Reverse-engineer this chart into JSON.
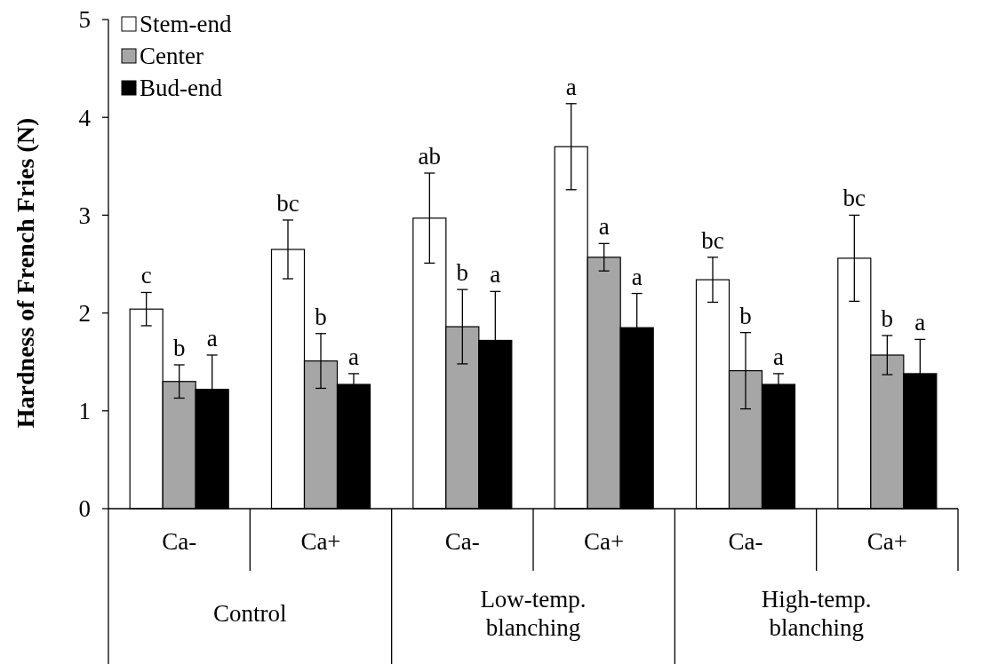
{
  "chart_data": {
    "type": "bar",
    "ylabel": "Hardness of French Fries (N)",
    "categories": [
      "Ca-",
      "Ca+",
      "Ca-",
      "Ca+",
      "Ca-",
      "Ca+"
    ],
    "series": [
      {
        "name": "Stem-end",
        "color": "#ffffff",
        "values": [
          2.04,
          2.65,
          2.97,
          3.7,
          2.34,
          2.56
        ],
        "errors": [
          0.17,
          0.3,
          0.46,
          0.44,
          0.23,
          0.44
        ],
        "value_labels": [
          "c",
          "bc",
          "ab",
          "a",
          "bc",
          "bc"
        ]
      },
      {
        "name": "Center",
        "color": "#a6a6a6",
        "values": [
          1.3,
          1.51,
          1.86,
          2.57,
          1.41,
          1.57
        ],
        "errors": [
          0.17,
          0.28,
          0.38,
          0.14,
          0.39,
          0.2
        ],
        "value_labels": [
          "b",
          "b",
          "b",
          "a",
          "b",
          "b"
        ]
      },
      {
        "name": "Bud-end",
        "color": "#000000",
        "values": [
          1.22,
          1.27,
          1.72,
          1.85,
          1.27,
          1.38
        ],
        "errors": [
          0.35,
          0.11,
          0.5,
          0.35,
          0.11,
          0.35
        ],
        "value_labels": [
          "a",
          "a",
          "a",
          "a",
          "a",
          "a"
        ]
      }
    ],
    "annotations": [
      "Control",
      "Low-temp. blanching",
      "High-temp. blanching"
    ],
    "ylim": [
      0,
      5
    ],
    "yticks": [
      0,
      1,
      2,
      3,
      4,
      5
    ],
    "legend": "top left",
    "grid": false
  }
}
